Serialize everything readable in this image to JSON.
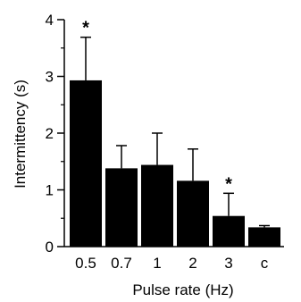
{
  "chart_data": {
    "type": "bar",
    "categories": [
      "0.5",
      "0.7",
      "1",
      "2",
      "3",
      "c"
    ],
    "values": [
      2.93,
      1.38,
      1.44,
      1.16,
      0.54,
      0.34
    ],
    "errors": [
      0.76,
      0.4,
      0.56,
      0.56,
      0.4,
      0.03
    ],
    "annotations": [
      "*",
      "",
      "",
      "",
      "*",
      ""
    ],
    "xlabel": "Pulse rate (Hz)",
    "ylabel": "Intermittency (s)",
    "ylim": [
      0,
      4
    ],
    "yticks": [
      "0",
      "1",
      "2",
      "3",
      "4"
    ],
    "grid": false,
    "bar_color": "#000000"
  }
}
